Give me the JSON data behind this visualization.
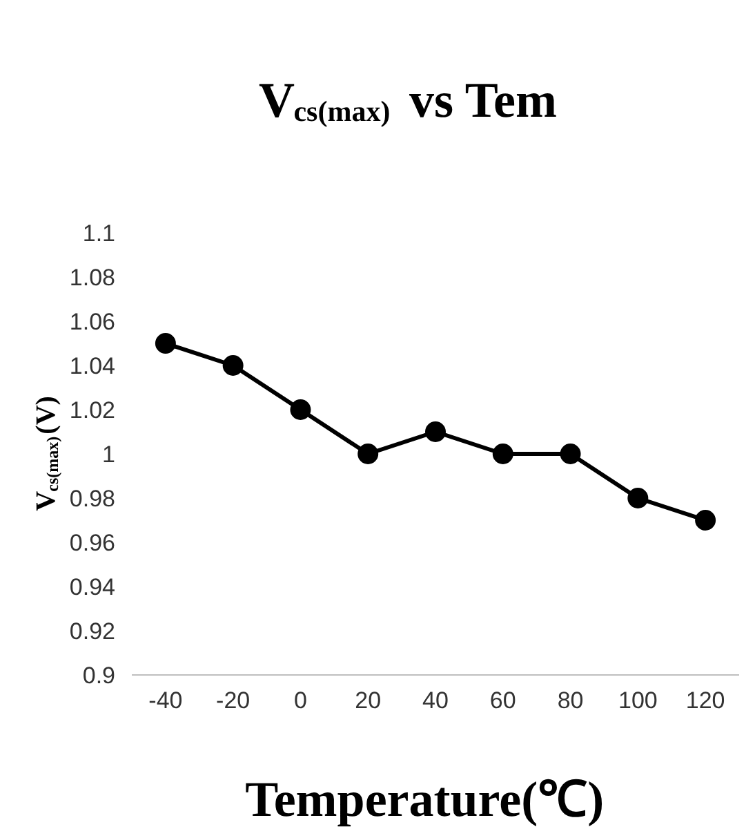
{
  "chart_data": {
    "type": "line",
    "title": "V$_{cs(max)}$ vs Tem",
    "xlabel": "Temperature(℃)",
    "ylabel": "V$_{cs(max)}$(V)",
    "categories": [
      "-40",
      "-20",
      "0",
      "20",
      "40",
      "60",
      "80",
      "100",
      "120"
    ],
    "series": [
      {
        "color": "#000000",
        "values": [
          1.05,
          1.04,
          1.02,
          1.0,
          1.01,
          1.0,
          1.0,
          0.98,
          0.97
        ]
      }
    ],
    "ylim": [
      0.9,
      1.1
    ],
    "yticks": [
      0.9,
      0.92,
      0.94,
      0.96,
      0.98,
      1,
      1.02,
      1.04,
      1.06,
      1.08,
      1.1
    ],
    "marker": "circle",
    "line_style": "solid"
  }
}
